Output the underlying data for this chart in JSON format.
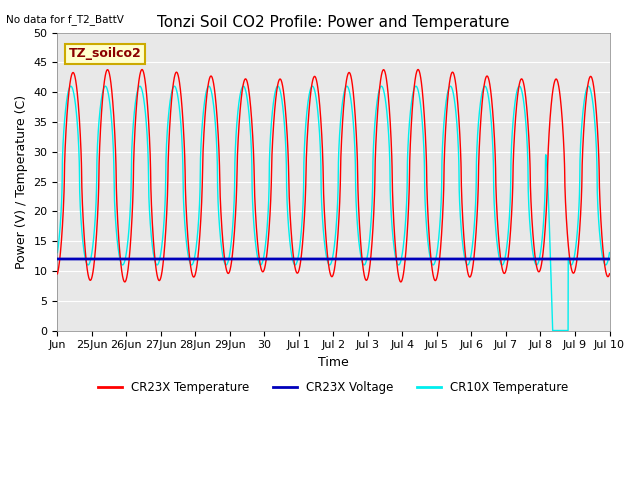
{
  "title": "Tonzi Soil CO2 Profile: Power and Temperature",
  "no_data_text": "No data for f_T2_BattV",
  "ylabel": "Power (V) / Temperature (C)",
  "xlabel": "Time",
  "ylim": [
    0,
    50
  ],
  "background_color": "#e8e8e8",
  "fig_background": "#ffffff",
  "legend_box_label": "TZ_soilco2",
  "legend_box_color": "#ffffcc",
  "legend_box_edge": "#ccaa00",
  "cr23x_temp_color": "#ff0000",
  "cr23x_volt_color": "#0000bb",
  "cr10x_temp_color": "#00eeee",
  "cr23x_volt_value": 12.0,
  "yticks": [
    0,
    5,
    10,
    15,
    20,
    25,
    30,
    35,
    40,
    45,
    50
  ],
  "xtick_labels": [
    "Jun",
    "25Jun",
    "26Jun",
    "27Jun",
    "28Jun",
    "29Jun",
    "30",
    "Jul 1",
    "Jul 2",
    "Jul 3",
    "Jul 4",
    "Jul 5",
    "Jul 6",
    "Jul 7",
    "Jul 8",
    "Jul 9",
    "Jul 10"
  ],
  "num_days": 16,
  "grid_color": "#ffffff",
  "title_fontsize": 11,
  "axis_label_fontsize": 9,
  "tick_fontsize": 8
}
